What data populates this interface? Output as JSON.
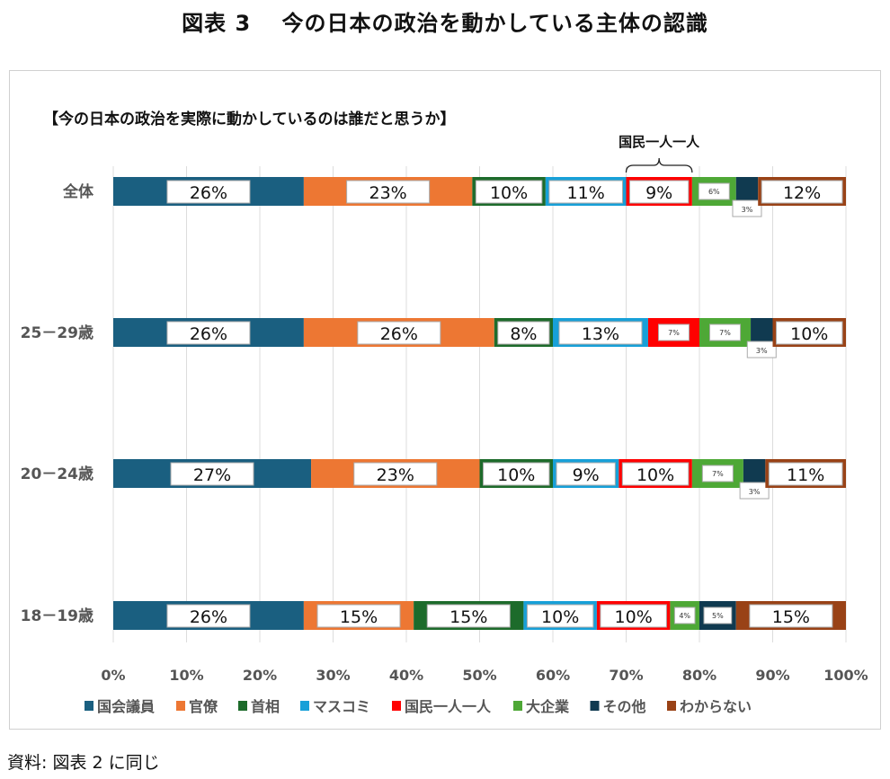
{
  "title": "図表 3　 今の日本の政治を動かしている主体の認識",
  "source": "資料: 図表 2 に同じ",
  "chart_data": {
    "type": "bar",
    "orientation": "horizontal",
    "stacked": true,
    "title": "【今の日本の政治を実際に動かしているのは誰だと思うか】",
    "annotation": "国民一人一人",
    "categories": [
      "全体",
      "25－29歳",
      "20－24歳",
      "18－19歳"
    ],
    "xlim": [
      0,
      100
    ],
    "xticks": [
      "0%",
      "10%",
      "20%",
      "30%",
      "40%",
      "50%",
      "60%",
      "70%",
      "80%",
      "90%",
      "100%"
    ],
    "grid": true,
    "legend_position": "bottom",
    "series": [
      {
        "name": "国会議員",
        "color": "#1a5f80",
        "values": [
          26,
          26,
          27,
          26
        ]
      },
      {
        "name": "官僚",
        "color": "#ed7733",
        "values": [
          23,
          26,
          23,
          15
        ]
      },
      {
        "name": "首相",
        "color": "#1d6b2b",
        "values": [
          10,
          8,
          10,
          15
        ]
      },
      {
        "name": "マスコミ",
        "color": "#17a0d8",
        "values": [
          11,
          13,
          9,
          10
        ]
      },
      {
        "name": "国民一人一人",
        "color": "#ff0000",
        "values": [
          9,
          7,
          10,
          10
        ]
      },
      {
        "name": "大企業",
        "color": "#4ea836",
        "values": [
          6,
          7,
          7,
          4
        ]
      },
      {
        "name": "その他",
        "color": "#103a50",
        "values": [
          3,
          3,
          3,
          5
        ]
      },
      {
        "name": "わからない",
        "color": "#994216",
        "values": [
          12,
          10,
          11,
          15
        ]
      }
    ]
  }
}
